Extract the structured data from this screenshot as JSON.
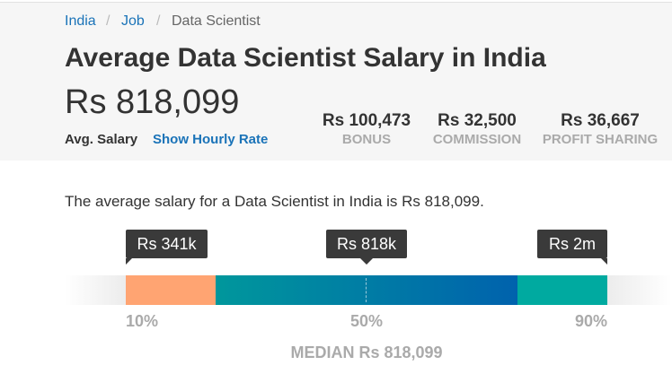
{
  "breadcrumb": [
    "India",
    "Job",
    "Data Scientist"
  ],
  "title": "Average Data Scientist Salary in India",
  "salary": "Rs 818,099",
  "salary_label": "Avg. Salary",
  "hourly_link": "Show Hourly Rate",
  "stats": [
    {
      "value": "Rs 100,473",
      "label": "BONUS"
    },
    {
      "value": "Rs 32,500",
      "label": "COMMISSION"
    },
    {
      "value": "Rs 36,667",
      "label": "PROFIT SHARING"
    }
  ],
  "description": "The average salary for a Data Scientist in India is Rs 818,099.",
  "percentiles": [
    {
      "tooltip": "Rs 341k",
      "label": "10%"
    },
    {
      "tooltip": "Rs 818k",
      "label": "50%"
    },
    {
      "tooltip": "Rs 2m",
      "label": "90%"
    }
  ],
  "median": "MEDIAN Rs 818,099"
}
